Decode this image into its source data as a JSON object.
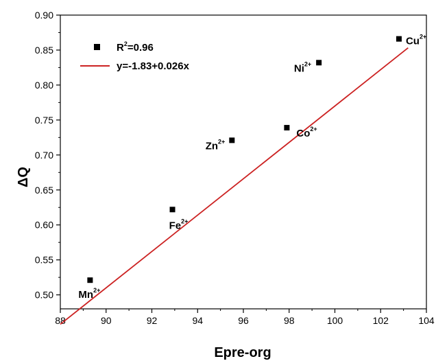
{
  "chart_data": {
    "type": "scatter",
    "xlabel": "Epre-org",
    "ylabel": "ΔQ",
    "xlim": [
      88,
      104
    ],
    "ylim": [
      0.48,
      0.9
    ],
    "x_ticks": [
      "88",
      "90",
      "92",
      "94",
      "96",
      "98",
      "100",
      "102",
      "104"
    ],
    "y_ticks": [
      "0.50",
      "0.55",
      "0.60",
      "0.65",
      "0.70",
      "0.75",
      "0.80",
      "0.85",
      "0.90"
    ],
    "grid": false,
    "legend_position": "top-left",
    "colors": {
      "points": "#000000",
      "fit_line": "#cc2222",
      "axes": "#000000"
    },
    "points": [
      {
        "ion": "Mn",
        "charge": "2+",
        "x": 89.3,
        "y": 0.521
      },
      {
        "ion": "Fe",
        "charge": "2+",
        "x": 92.9,
        "y": 0.622
      },
      {
        "ion": "Zn",
        "charge": "2+",
        "x": 95.5,
        "y": 0.721
      },
      {
        "ion": "Co",
        "charge": "2+",
        "x": 97.9,
        "y": 0.739
      },
      {
        "ion": "Ni",
        "charge": "2+",
        "x": 99.3,
        "y": 0.832
      },
      {
        "ion": "Cu",
        "charge": "2+",
        "x": 102.8,
        "y": 0.866
      }
    ],
    "fit": {
      "intercept": -1.83,
      "slope": 0.026,
      "x_range": [
        88,
        103.2
      ]
    },
    "legend": {
      "r2_prefix": "R",
      "r2_power": "2",
      "r2_value": "=0.96",
      "fit_label": "y=-1.83+0.026x"
    }
  }
}
